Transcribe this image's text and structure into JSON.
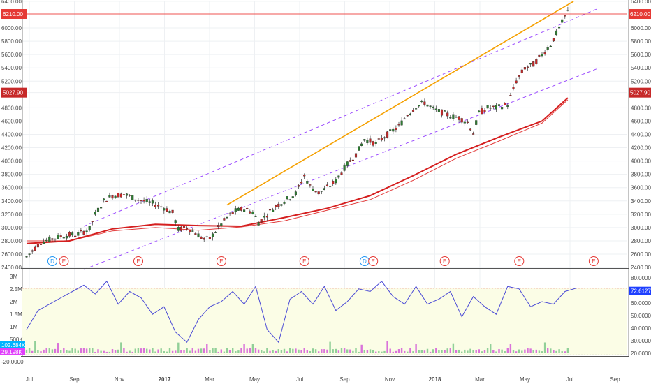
{
  "chart_data": [
    {
      "type": "candlestick",
      "panel": "price",
      "y_ticks": [
        "6400.00",
        "6210.00",
        "6000.00",
        "5800.00",
        "5600.00",
        "5400.00",
        "5200.00",
        "5027.90",
        "4800.00",
        "4600.00",
        "4400.00",
        "4200.00",
        "4000.00",
        "3800.00",
        "3600.00",
        "3400.00",
        "3200.00",
        "3000.00",
        "2800.00",
        "2600.00",
        "2400.00"
      ],
      "ylim": [
        2380,
        6420
      ],
      "x_ticks": [
        "Jul",
        "Sep",
        "Nov",
        "2017",
        "Mar",
        "May",
        "Jul",
        "Sep",
        "Nov",
        "2018",
        "Mar",
        "May",
        "Jul",
        "Sep"
      ],
      "price_tags": [
        {
          "label": "6210.00",
          "value": 6210,
          "color": "#e53935"
        },
        {
          "label": "5027.90",
          "value": 5027.9,
          "color": "#c62828"
        }
      ],
      "price_path": [
        [
          0,
          2560
        ],
        [
          5,
          2780
        ],
        [
          12,
          2870
        ],
        [
          18,
          2900
        ],
        [
          22,
          2980
        ],
        [
          24,
          3200
        ],
        [
          27,
          3400
        ],
        [
          30,
          3480
        ],
        [
          34,
          3500
        ],
        [
          39,
          3420
        ],
        [
          44,
          3360
        ],
        [
          48,
          3300
        ],
        [
          51,
          3220
        ],
        [
          53,
          2970
        ],
        [
          56,
          3000
        ],
        [
          59,
          2920
        ],
        [
          62,
          2820
        ],
        [
          64,
          2830
        ],
        [
          67,
          3000
        ],
        [
          70,
          3150
        ],
        [
          73,
          3250
        ],
        [
          76,
          3280
        ],
        [
          79,
          3230
        ],
        [
          81,
          3080
        ],
        [
          84,
          3200
        ],
        [
          87,
          3320
        ],
        [
          90,
          3400
        ],
        [
          94,
          3510
        ],
        [
          97,
          3780
        ],
        [
          99,
          3620
        ],
        [
          102,
          3520
        ],
        [
          105,
          3600
        ],
        [
          108,
          3700
        ],
        [
          111,
          3900
        ],
        [
          115,
          4100
        ],
        [
          118,
          4330
        ],
        [
          122,
          4260
        ],
        [
          126,
          4400
        ],
        [
          130,
          4520
        ],
        [
          133,
          4700
        ],
        [
          136,
          4820
        ],
        [
          139,
          4880
        ],
        [
          142,
          4780
        ],
        [
          145,
          4730
        ],
        [
          148,
          4680
        ],
        [
          151,
          4650
        ],
        [
          154,
          4580
        ],
        [
          156,
          4420
        ],
        [
          158,
          4720
        ],
        [
          161,
          4800
        ],
        [
          164,
          4800
        ],
        [
          168,
          4850
        ],
        [
          171,
          5200
        ],
        [
          174,
          5400
        ],
        [
          177,
          5450
        ],
        [
          180,
          5600
        ],
        [
          183,
          5750
        ],
        [
          186,
          6000
        ],
        [
          189,
          6250
        ]
      ],
      "ma_thick": [
        [
          0,
          2760
        ],
        [
          15,
          2800
        ],
        [
          30,
          2980
        ],
        [
          45,
          3050
        ],
        [
          60,
          3030
        ],
        [
          75,
          3020
        ],
        [
          90,
          3150
        ],
        [
          105,
          3290
        ],
        [
          120,
          3480
        ],
        [
          135,
          3780
        ],
        [
          150,
          4100
        ],
        [
          165,
          4360
        ],
        [
          180,
          4600
        ],
        [
          189,
          4950
        ]
      ],
      "ma_thin": [
        [
          0,
          2800
        ],
        [
          15,
          2800
        ],
        [
          30,
          2950
        ],
        [
          45,
          3000
        ],
        [
          60,
          2960
        ],
        [
          75,
          3010
        ],
        [
          90,
          3100
        ],
        [
          105,
          3260
        ],
        [
          120,
          3420
        ],
        [
          135,
          3710
        ],
        [
          150,
          4040
        ],
        [
          165,
          4300
        ],
        [
          180,
          4570
        ],
        [
          189,
          4920
        ]
      ],
      "trend_line_orange": [
        [
          70,
          3340
        ],
        [
          191,
          6400
        ]
      ],
      "channel_upper": [
        [
          20,
          3020
        ],
        [
          200,
          6300
        ]
      ],
      "channel_lower": [
        [
          20,
          2370
        ],
        [
          200,
          5400
        ]
      ],
      "event_markers": [
        {
          "x": 10,
          "label": "D"
        },
        {
          "x": 14,
          "label": "E"
        },
        {
          "x": 40,
          "label": "E"
        },
        {
          "x": 69,
          "label": "E"
        },
        {
          "x": 98,
          "label": "E"
        },
        {
          "x": 119,
          "label": "D"
        },
        {
          "x": 122,
          "label": "E"
        },
        {
          "x": 147,
          "label": "E"
        },
        {
          "x": 173,
          "label": "E"
        },
        {
          "x": 199,
          "label": "E"
        }
      ]
    },
    {
      "type": "line",
      "panel": "indicator",
      "left_ticks": [
        "3M",
        "2.5M",
        "2M",
        "1.5M",
        "1M",
        "500K"
      ],
      "right_ticks": [
        "80.0000",
        "70.0000",
        "60.0000",
        "50.0000",
        "40.0000",
        "30.0000",
        "20.0000"
      ],
      "left_tags": [
        {
          "label": "102.684K",
          "color": "#00b3ff"
        },
        {
          "label": "29.198K",
          "color": "#e040fb"
        }
      ],
      "right_tags": [
        {
          "label": "72.6127",
          "color": "#1e3fff"
        }
      ],
      "below_axis_tick": "-20.0000",
      "indicator_band": [
        20,
        72.6127
      ],
      "indicator_ylim": [
        18,
        84
      ],
      "indicator_path": [
        [
          0,
          40
        ],
        [
          4,
          55
        ],
        [
          8,
          60
        ],
        [
          12,
          65
        ],
        [
          16,
          70
        ],
        [
          20,
          75
        ],
        [
          24,
          68
        ],
        [
          28,
          78
        ],
        [
          32,
          60
        ],
        [
          36,
          70
        ],
        [
          40,
          65
        ],
        [
          44,
          52
        ],
        [
          48,
          58
        ],
        [
          52,
          38
        ],
        [
          56,
          30
        ],
        [
          60,
          48
        ],
        [
          64,
          58
        ],
        [
          68,
          62
        ],
        [
          72,
          70
        ],
        [
          76,
          60
        ],
        [
          80,
          74
        ],
        [
          84,
          40
        ],
        [
          88,
          30
        ],
        [
          92,
          64
        ],
        [
          96,
          70
        ],
        [
          100,
          60
        ],
        [
          104,
          74
        ],
        [
          108,
          55
        ],
        [
          112,
          62
        ],
        [
          116,
          72
        ],
        [
          120,
          70
        ],
        [
          124,
          78
        ],
        [
          128,
          66
        ],
        [
          132,
          60
        ],
        [
          136,
          74
        ],
        [
          140,
          60
        ],
        [
          144,
          64
        ],
        [
          148,
          70
        ],
        [
          152,
          50
        ],
        [
          156,
          66
        ],
        [
          160,
          58
        ],
        [
          164,
          52
        ],
        [
          168,
          74
        ],
        [
          172,
          72
        ],
        [
          176,
          58
        ],
        [
          180,
          62
        ],
        [
          184,
          60
        ],
        [
          188,
          70
        ],
        [
          192,
          72.6
        ]
      ]
    }
  ]
}
